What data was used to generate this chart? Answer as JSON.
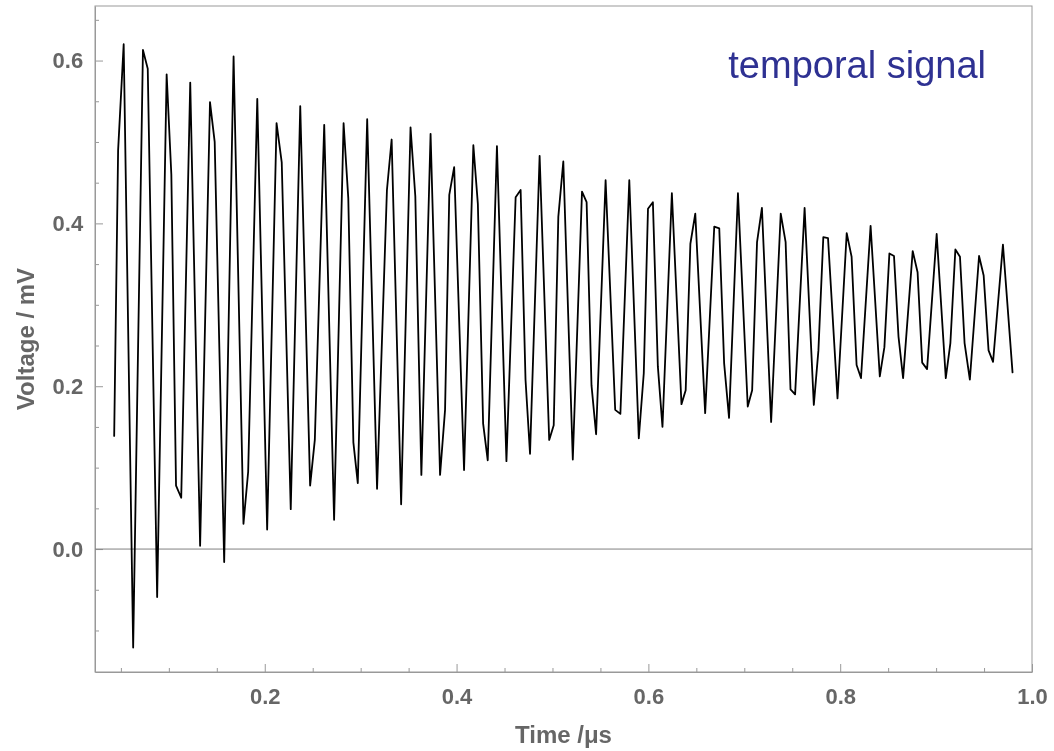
{
  "chart_data": {
    "type": "line",
    "xlabel": "Time /μs",
    "ylabel": "Voltage / mV",
    "annotations": [
      "temporal signal"
    ],
    "xlim": [
      0.023,
      1.0
    ],
    "ylim": [
      -0.151,
      0.667
    ],
    "xticks": [
      {
        "value": 0.05,
        "label": null
      },
      {
        "value": 0.1,
        "label": null
      },
      {
        "value": 0.15,
        "label": null
      },
      {
        "value": 0.2,
        "label": "0.2"
      },
      {
        "value": 0.25,
        "label": null
      },
      {
        "value": 0.3,
        "label": null
      },
      {
        "value": 0.35,
        "label": null
      },
      {
        "value": 0.4,
        "label": "0.4"
      },
      {
        "value": 0.45,
        "label": null
      },
      {
        "value": 0.5,
        "label": null
      },
      {
        "value": 0.55,
        "label": null
      },
      {
        "value": 0.6,
        "label": "0.6"
      },
      {
        "value": 0.65,
        "label": null
      },
      {
        "value": 0.7,
        "label": null
      },
      {
        "value": 0.75,
        "label": null
      },
      {
        "value": 0.8,
        "label": "0.8"
      },
      {
        "value": 0.85,
        "label": null
      },
      {
        "value": 0.9,
        "label": null
      },
      {
        "value": 0.95,
        "label": null
      },
      {
        "value": 1.0,
        "label": "1.0"
      }
    ],
    "yticks": [
      {
        "value": -0.1,
        "label": null
      },
      {
        "value": -0.05,
        "label": null
      },
      {
        "value": 0,
        "label": "0.0"
      },
      {
        "value": 0.05,
        "label": null
      },
      {
        "value": 0.1,
        "label": null
      },
      {
        "value": 0.15,
        "label": null
      },
      {
        "value": 0.2,
        "label": "0.2"
      },
      {
        "value": 0.25,
        "label": null
      },
      {
        "value": 0.3,
        "label": null
      },
      {
        "value": 0.35,
        "label": null
      },
      {
        "value": 0.4,
        "label": "0.4"
      },
      {
        "value": 0.45,
        "label": null
      },
      {
        "value": 0.5,
        "label": null
      },
      {
        "value": 0.55,
        "label": null
      },
      {
        "value": 0.6,
        "label": "0.6"
      },
      {
        "value": 0.65,
        "label": null
      }
    ],
    "grid": false,
    "marker": "none",
    "line_style": "solid",
    "ref_lines": [
      {
        "axis": "y",
        "value": 0,
        "color": "#808080"
      }
    ],
    "series": [
      {
        "color": "#000000",
        "x": [
          0.043,
          0.0471,
          0.0529,
          0.0628,
          0.073,
          0.078,
          0.0878,
          0.0977,
          0.1026,
          0.1075,
          0.1129,
          0.1223,
          0.1326,
          0.1429,
          0.1478,
          0.1577,
          0.1675,
          0.1778,
          0.1827,
          0.1922,
          0.2025,
          0.2123,
          0.2177,
          0.2271,
          0.237,
          0.2473,
          0.2522,
          0.262,
          0.2723,
          0.2822,
          0.2871,
          0.2924,
          0.297,
          0.3068,
          0.3171,
          0.3274,
          0.3323,
          0.3422,
          0.352,
          0.357,
          0.3633,
          0.3729,
          0.3828,
          0.388,
          0.3924,
          0.3975,
          0.4078,
          0.4175,
          0.4222,
          0.4277,
          0.4325,
          0.4421,
          0.452,
          0.4616,
          0.4668,
          0.4719,
          0.4766,
          0.4866,
          0.4966,
          0.5013,
          0.5061,
          0.5113,
          0.5212,
          0.5308,
          0.5356,
          0.5407,
          0.5455,
          0.5554,
          0.5654,
          0.5708,
          0.5801,
          0.59,
          0.5952,
          0.5996,
          0.6047,
          0.6099,
          0.6147,
          0.6245,
          0.6345,
          0.6389,
          0.6438,
          0.6489,
          0.6592,
          0.6687,
          0.6739,
          0.679,
          0.6841,
          0.6934,
          0.7036,
          0.7082,
          0.7133,
          0.7184,
          0.728,
          0.738,
          0.7431,
          0.7482,
          0.753,
          0.7629,
          0.7725,
          0.7773,
          0.7824,
          0.7873,
          0.7972,
          0.8068,
          0.8119,
          0.8171,
          0.8217,
          0.8317,
          0.8413,
          0.8461,
          0.8513,
          0.8561,
          0.8608,
          0.8656,
          0.8756,
          0.8807,
          0.8855,
          0.8906,
          0.9006,
          0.9101,
          0.9149,
          0.9201,
          0.9249,
          0.9297,
          0.9352,
          0.9448,
          0.9496,
          0.9547,
          0.9594,
          0.9697,
          0.9797
        ],
        "values": [
          0.139,
          0.49,
          0.62,
          -0.121,
          0.613,
          0.59,
          -0.059,
          0.583,
          0.46,
          0.078,
          0.063,
          0.573,
          0.004,
          0.549,
          0.5,
          -0.016,
          0.605,
          0.031,
          0.095,
          0.553,
          0.024,
          0.523,
          0.475,
          0.049,
          0.544,
          0.078,
          0.134,
          0.521,
          0.036,
          0.523,
          0.431,
          0.131,
          0.081,
          0.528,
          0.074,
          0.441,
          0.503,
          0.055,
          0.518,
          0.433,
          0.091,
          0.51,
          0.091,
          0.171,
          0.435,
          0.469,
          0.097,
          0.496,
          0.424,
          0.154,
          0.109,
          0.495,
          0.108,
          0.432,
          0.441,
          0.208,
          0.117,
          0.483,
          0.134,
          0.152,
          0.408,
          0.476,
          0.11,
          0.439,
          0.426,
          0.201,
          0.141,
          0.453,
          0.171,
          0.166,
          0.453,
          0.136,
          0.216,
          0.418,
          0.426,
          0.224,
          0.15,
          0.437,
          0.178,
          0.195,
          0.375,
          0.412,
          0.167,
          0.396,
          0.394,
          0.228,
          0.161,
          0.437,
          0.175,
          0.195,
          0.377,
          0.419,
          0.156,
          0.412,
          0.377,
          0.196,
          0.19,
          0.419,
          0.177,
          0.244,
          0.383,
          0.382,
          0.185,
          0.388,
          0.359,
          0.226,
          0.21,
          0.397,
          0.212,
          0.248,
          0.363,
          0.36,
          0.261,
          0.21,
          0.366,
          0.34,
          0.229,
          0.221,
          0.387,
          0.21,
          0.253,
          0.368,
          0.359,
          0.253,
          0.208,
          0.36,
          0.336,
          0.244,
          0.23,
          0.374,
          0.217
        ]
      }
    ]
  }
}
